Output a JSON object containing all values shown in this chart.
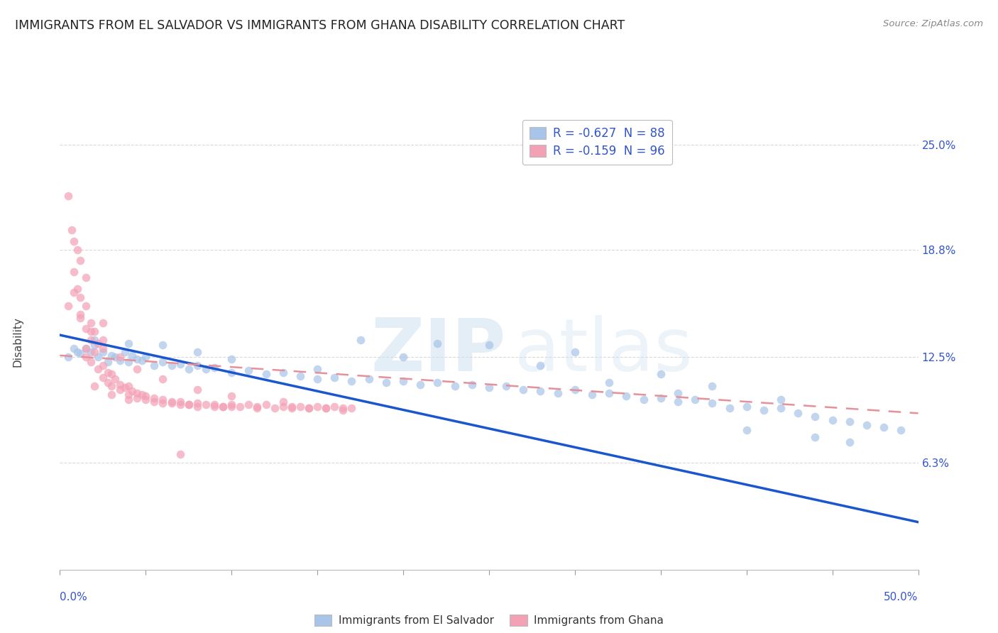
{
  "title": "IMMIGRANTS FROM EL SALVADOR VS IMMIGRANTS FROM GHANA DISABILITY CORRELATION CHART",
  "source": "Source: ZipAtlas.com",
  "ylabel": "Disability",
  "y_ticks": [
    0.0,
    0.063,
    0.125,
    0.188,
    0.25
  ],
  "y_tick_labels": [
    "",
    "6.3%",
    "12.5%",
    "18.8%",
    "25.0%"
  ],
  "x_range": [
    0.0,
    0.5
  ],
  "y_range": [
    0.0,
    0.268
  ],
  "legend_blue_text": "R = -0.627  N = 88",
  "legend_pink_text": "R = -0.159  N = 96",
  "legend_text_color": "#3355cc",
  "blue_scatter_color": "#a8c4e8",
  "pink_scatter_color": "#f4a0b5",
  "blue_line_color": "#1a56cc",
  "pink_line_color": "#e8909a",
  "background_color": "#ffffff",
  "grid_color": "#d0d0d0",
  "title_color": "#222222",
  "blue_scatter": [
    [
      0.005,
      0.125
    ],
    [
      0.008,
      0.13
    ],
    [
      0.01,
      0.128
    ],
    [
      0.012,
      0.127
    ],
    [
      0.015,
      0.13
    ],
    [
      0.018,
      0.128
    ],
    [
      0.02,
      0.132
    ],
    [
      0.022,
      0.125
    ],
    [
      0.025,
      0.128
    ],
    [
      0.028,
      0.122
    ],
    [
      0.03,
      0.126
    ],
    [
      0.032,
      0.125
    ],
    [
      0.035,
      0.123
    ],
    [
      0.038,
      0.128
    ],
    [
      0.04,
      0.122
    ],
    [
      0.042,
      0.126
    ],
    [
      0.045,
      0.124
    ],
    [
      0.048,
      0.123
    ],
    [
      0.05,
      0.125
    ],
    [
      0.055,
      0.12
    ],
    [
      0.06,
      0.122
    ],
    [
      0.065,
      0.12
    ],
    [
      0.07,
      0.121
    ],
    [
      0.075,
      0.118
    ],
    [
      0.08,
      0.12
    ],
    [
      0.085,
      0.118
    ],
    [
      0.09,
      0.119
    ],
    [
      0.1,
      0.116
    ],
    [
      0.11,
      0.117
    ],
    [
      0.12,
      0.115
    ],
    [
      0.13,
      0.116
    ],
    [
      0.14,
      0.114
    ],
    [
      0.15,
      0.112
    ],
    [
      0.16,
      0.113
    ],
    [
      0.17,
      0.111
    ],
    [
      0.18,
      0.112
    ],
    [
      0.19,
      0.11
    ],
    [
      0.2,
      0.111
    ],
    [
      0.21,
      0.109
    ],
    [
      0.22,
      0.11
    ],
    [
      0.23,
      0.108
    ],
    [
      0.24,
      0.109
    ],
    [
      0.25,
      0.107
    ],
    [
      0.26,
      0.108
    ],
    [
      0.27,
      0.106
    ],
    [
      0.28,
      0.105
    ],
    [
      0.29,
      0.104
    ],
    [
      0.3,
      0.106
    ],
    [
      0.31,
      0.103
    ],
    [
      0.32,
      0.104
    ],
    [
      0.33,
      0.102
    ],
    [
      0.34,
      0.1
    ],
    [
      0.35,
      0.101
    ],
    [
      0.36,
      0.099
    ],
    [
      0.37,
      0.1
    ],
    [
      0.38,
      0.098
    ],
    [
      0.39,
      0.095
    ],
    [
      0.4,
      0.096
    ],
    [
      0.41,
      0.094
    ],
    [
      0.42,
      0.095
    ],
    [
      0.43,
      0.092
    ],
    [
      0.44,
      0.09
    ],
    [
      0.45,
      0.088
    ],
    [
      0.46,
      0.087
    ],
    [
      0.47,
      0.085
    ],
    [
      0.48,
      0.084
    ],
    [
      0.49,
      0.082
    ],
    [
      0.25,
      0.132
    ],
    [
      0.3,
      0.128
    ],
    [
      0.175,
      0.135
    ],
    [
      0.22,
      0.133
    ],
    [
      0.35,
      0.115
    ],
    [
      0.38,
      0.108
    ],
    [
      0.42,
      0.1
    ],
    [
      0.4,
      0.082
    ],
    [
      0.44,
      0.078
    ],
    [
      0.46,
      0.075
    ],
    [
      0.15,
      0.118
    ],
    [
      0.2,
      0.125
    ],
    [
      0.28,
      0.12
    ],
    [
      0.32,
      0.11
    ],
    [
      0.36,
      0.104
    ],
    [
      0.1,
      0.124
    ],
    [
      0.08,
      0.128
    ],
    [
      0.06,
      0.132
    ],
    [
      0.04,
      0.133
    ],
    [
      0.02,
      0.135
    ]
  ],
  "pink_scatter": [
    [
      0.005,
      0.22
    ],
    [
      0.007,
      0.2
    ],
    [
      0.008,
      0.193
    ],
    [
      0.01,
      0.188
    ],
    [
      0.012,
      0.182
    ],
    [
      0.008,
      0.175
    ],
    [
      0.015,
      0.172
    ],
    [
      0.01,
      0.165
    ],
    [
      0.012,
      0.16
    ],
    [
      0.015,
      0.155
    ],
    [
      0.012,
      0.148
    ],
    [
      0.018,
      0.145
    ],
    [
      0.015,
      0.142
    ],
    [
      0.02,
      0.14
    ],
    [
      0.018,
      0.135
    ],
    [
      0.022,
      0.133
    ],
    [
      0.025,
      0.13
    ],
    [
      0.02,
      0.128
    ],
    [
      0.015,
      0.125
    ],
    [
      0.018,
      0.122
    ],
    [
      0.025,
      0.12
    ],
    [
      0.022,
      0.118
    ],
    [
      0.028,
      0.116
    ],
    [
      0.03,
      0.115
    ],
    [
      0.025,
      0.113
    ],
    [
      0.032,
      0.112
    ],
    [
      0.028,
      0.11
    ],
    [
      0.035,
      0.109
    ],
    [
      0.03,
      0.108
    ],
    [
      0.038,
      0.107
    ],
    [
      0.04,
      0.108
    ],
    [
      0.035,
      0.106
    ],
    [
      0.042,
      0.105
    ],
    [
      0.045,
      0.104
    ],
    [
      0.04,
      0.103
    ],
    [
      0.048,
      0.103
    ],
    [
      0.05,
      0.102
    ],
    [
      0.045,
      0.101
    ],
    [
      0.055,
      0.101
    ],
    [
      0.05,
      0.1
    ],
    [
      0.06,
      0.1
    ],
    [
      0.055,
      0.099
    ],
    [
      0.065,
      0.099
    ],
    [
      0.06,
      0.098
    ],
    [
      0.07,
      0.099
    ],
    [
      0.065,
      0.098
    ],
    [
      0.075,
      0.097
    ],
    [
      0.07,
      0.097
    ],
    [
      0.08,
      0.098
    ],
    [
      0.075,
      0.097
    ],
    [
      0.085,
      0.097
    ],
    [
      0.08,
      0.096
    ],
    [
      0.09,
      0.097
    ],
    [
      0.095,
      0.096
    ],
    [
      0.09,
      0.096
    ],
    [
      0.1,
      0.097
    ],
    [
      0.095,
      0.096
    ],
    [
      0.105,
      0.096
    ],
    [
      0.11,
      0.097
    ],
    [
      0.1,
      0.096
    ],
    [
      0.115,
      0.096
    ],
    [
      0.12,
      0.097
    ],
    [
      0.115,
      0.095
    ],
    [
      0.13,
      0.096
    ],
    [
      0.125,
      0.095
    ],
    [
      0.135,
      0.096
    ],
    [
      0.14,
      0.096
    ],
    [
      0.135,
      0.095
    ],
    [
      0.145,
      0.095
    ],
    [
      0.15,
      0.096
    ],
    [
      0.145,
      0.095
    ],
    [
      0.155,
      0.095
    ],
    [
      0.16,
      0.096
    ],
    [
      0.155,
      0.095
    ],
    [
      0.165,
      0.095
    ],
    [
      0.17,
      0.095
    ],
    [
      0.165,
      0.094
    ],
    [
      0.005,
      0.155
    ],
    [
      0.008,
      0.163
    ],
    [
      0.012,
      0.15
    ],
    [
      0.018,
      0.14
    ],
    [
      0.025,
      0.135
    ],
    [
      0.035,
      0.125
    ],
    [
      0.045,
      0.118
    ],
    [
      0.06,
      0.112
    ],
    [
      0.08,
      0.106
    ],
    [
      0.1,
      0.102
    ],
    [
      0.13,
      0.099
    ],
    [
      0.07,
      0.068
    ],
    [
      0.02,
      0.108
    ],
    [
      0.03,
      0.103
    ],
    [
      0.04,
      0.1
    ],
    [
      0.015,
      0.13
    ],
    [
      0.025,
      0.145
    ]
  ],
  "blue_line_x": [
    0.0,
    0.5
  ],
  "blue_line_y": [
    0.138,
    0.028
  ],
  "pink_line_x": [
    0.0,
    0.5
  ],
  "pink_line_y": [
    0.126,
    0.092
  ]
}
